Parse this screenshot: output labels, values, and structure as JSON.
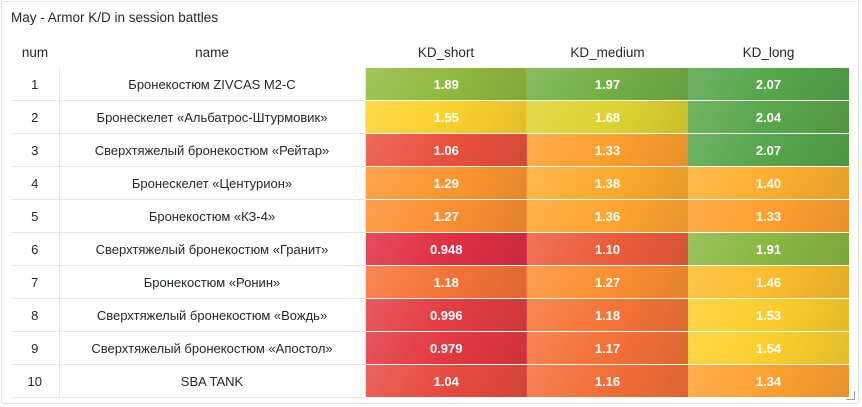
{
  "panel": {
    "title": "May - Armor K/D in session battles"
  },
  "table": {
    "columns": [
      "num",
      "name",
      "KD_short",
      "KD_medium",
      "KD_long"
    ],
    "rows": [
      {
        "num": "1",
        "name": "Бронекостюм ZIVCAS M2-C",
        "kd_short": "1.89",
        "kd_medium": "1.97",
        "kd_long": "2.07"
      },
      {
        "num": "2",
        "name": "Бронескелет «Альбатрос-Штурмовик»",
        "kd_short": "1.55",
        "kd_medium": "1.68",
        "kd_long": "2.04"
      },
      {
        "num": "3",
        "name": "Сверхтяжелый бронекостюм «Рейтар»",
        "kd_short": "1.06",
        "kd_medium": "1.33",
        "kd_long": "2.07"
      },
      {
        "num": "4",
        "name": "Бронескелет «Центурион»",
        "kd_short": "1.29",
        "kd_medium": "1.38",
        "kd_long": "1.40"
      },
      {
        "num": "5",
        "name": "Бронекостюм «КЗ-4»",
        "kd_short": "1.27",
        "kd_medium": "1.36",
        "kd_long": "1.33"
      },
      {
        "num": "6",
        "name": "Сверхтяжелый бронекостюм «Гранит»",
        "kd_short": "0.948",
        "kd_medium": "1.10",
        "kd_long": "1.91"
      },
      {
        "num": "7",
        "name": "Бронекостюм «Ронин»",
        "kd_short": "1.18",
        "kd_medium": "1.27",
        "kd_long": "1.46"
      },
      {
        "num": "8",
        "name": "Сверхтяжелый бронекостюм «Вождь»",
        "kd_short": "0.996",
        "kd_medium": "1.18",
        "kd_long": "1.53"
      },
      {
        "num": "9",
        "name": "Сверхтяжелый бронекостюм «Апостол»",
        "kd_short": "0.979",
        "kd_medium": "1.17",
        "kd_long": "1.54"
      },
      {
        "num": "10",
        "name": "SBA TANK",
        "kd_short": "1.04",
        "kd_medium": "1.16",
        "kd_long": "1.34"
      }
    ]
  },
  "colors": {
    "low": "#e02f44",
    "mid": "#ff9830",
    "high_yellow": "#fade2a",
    "high": "#56a64b"
  }
}
